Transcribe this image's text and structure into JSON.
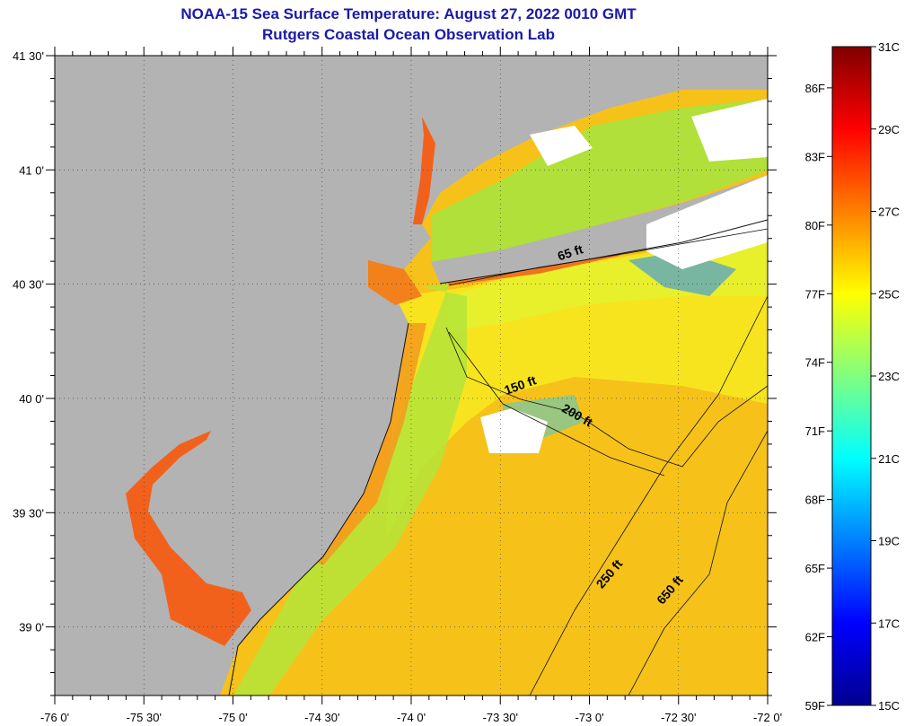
{
  "header": {
    "title": "NOAA-15 Sea Surface Temperature:  August 27, 2022 0010 GMT",
    "subtitle": "Rutgers Coastal Ocean Observation Lab"
  },
  "map": {
    "lon_range": [
      -76.0,
      -72.0
    ],
    "lat_range": [
      38.7,
      41.5
    ],
    "x_ticks": [
      {
        "value": -76.0,
        "label": "-76 0'"
      },
      {
        "value": -75.5,
        "label": "-75 30'"
      },
      {
        "value": -75.0,
        "label": "-75 0'"
      },
      {
        "value": -74.5,
        "label": "-74 30'"
      },
      {
        "value": -74.0,
        "label": "-74 0'"
      },
      {
        "value": -73.5,
        "label": "-73 30'"
      },
      {
        "value": -73.0,
        "label": "-73 0'"
      },
      {
        "value": -72.5,
        "label": "-72 30'"
      },
      {
        "value": -72.0,
        "label": "-72 0'"
      }
    ],
    "y_ticks": [
      {
        "value": 41.5,
        "label": "41 30'"
      },
      {
        "value": 41.0,
        "label": "41 0'"
      },
      {
        "value": 40.5,
        "label": "40 30'"
      },
      {
        "value": 40.0,
        "label": "40 0'"
      },
      {
        "value": 39.5,
        "label": "39 30'"
      },
      {
        "value": 39.0,
        "label": "39 0'"
      }
    ],
    "depth_labels": [
      {
        "text": "65 ft",
        "lon": -73.1,
        "lat": 40.62,
        "angle": -18
      },
      {
        "text": "150 ft",
        "lon": -73.38,
        "lat": 40.04,
        "angle": -20
      },
      {
        "text": "200 ft",
        "lon": -73.08,
        "lat": 39.91,
        "angle": 30
      },
      {
        "text": "250 ft",
        "lon": -72.87,
        "lat": 39.22,
        "angle": -50
      },
      {
        "text": "650 ft",
        "lon": -72.53,
        "lat": 39.15,
        "angle": -50
      }
    ],
    "colors": {
      "land": "#b3b3b3",
      "nodata": "#ffffff",
      "ocean_warm": "#f6c51a",
      "ocean_mid": "#f7e61e",
      "coastal_cool": "#b7ea3e",
      "bay_hot": "#f4621b"
    }
  },
  "colorbar": {
    "celsius": [
      {
        "value": 31,
        "label": "31C"
      },
      {
        "value": 29,
        "label": "29C"
      },
      {
        "value": 27,
        "label": "27C"
      },
      {
        "value": 25,
        "label": "25C"
      },
      {
        "value": 23,
        "label": "23C"
      },
      {
        "value": 21,
        "label": "21C"
      },
      {
        "value": 19,
        "label": "19C"
      },
      {
        "value": 17,
        "label": "17C"
      },
      {
        "value": 15,
        "label": "15C"
      }
    ],
    "fahrenheit": [
      {
        "value": 86,
        "label": "86F"
      },
      {
        "value": 83,
        "label": "83F"
      },
      {
        "value": 80,
        "label": "80F"
      },
      {
        "value": 77,
        "label": "77F"
      },
      {
        "value": 74,
        "label": "74F"
      },
      {
        "value": 71,
        "label": "71F"
      },
      {
        "value": 68,
        "label": "68F"
      },
      {
        "value": 65,
        "label": "65F"
      },
      {
        "value": 62,
        "label": "62F"
      },
      {
        "value": 59,
        "label": "59F"
      }
    ],
    "range_c": [
      15,
      31
    ]
  }
}
